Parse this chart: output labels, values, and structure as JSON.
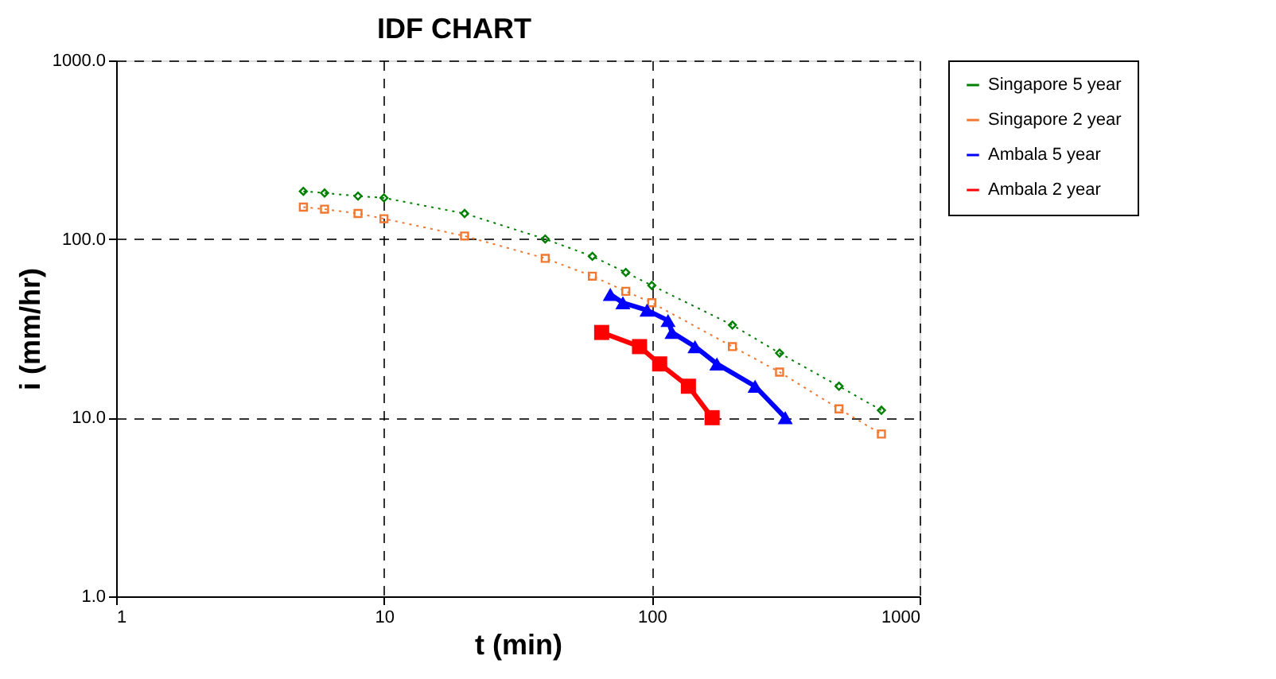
{
  "chart_data": {
    "type": "line",
    "title": "IDF CHART",
    "xlabel": "t (min)",
    "ylabel": "i (mm/hr)",
    "log": "xy",
    "grid": true,
    "legend": "right",
    "xlim": [
      1,
      1000
    ],
    "xticks": [
      1,
      10,
      100,
      1000
    ],
    "ylim": [
      1,
      1000
    ],
    "yticks": [
      {
        "value": 1,
        "label": "1.0"
      },
      {
        "value": 10,
        "label": "10.0"
      },
      {
        "value": 100,
        "label": "100.0"
      },
      {
        "value": 1000,
        "label": "1000.0"
      }
    ],
    "series": [
      {
        "name": "Singapore 5 year",
        "color": "#008000",
        "marker": "diamond",
        "line_style": "dotted",
        "x": [
          5,
          6,
          8,
          10,
          20,
          40,
          60,
          80,
          100,
          200,
          300,
          500,
          720
        ],
        "values": [
          185,
          181,
          174,
          170,
          139,
          100,
          80,
          65,
          55,
          33,
          23,
          15,
          11
        ]
      },
      {
        "name": "Singapore 2 year",
        "color": "#f07830",
        "marker": "square",
        "line_style": "dotted",
        "x": [
          5,
          6,
          8,
          10,
          20,
          40,
          60,
          80,
          100,
          200,
          300,
          500,
          720
        ],
        "values": [
          151,
          147,
          139,
          130,
          104,
          78,
          62,
          51,
          44,
          25,
          18,
          11.2,
          8.1
        ]
      },
      {
        "name": "Ambala 5 year",
        "color": "#0000ff",
        "marker": "triangle",
        "line_style": "solid",
        "x": [
          70,
          78,
          96,
          115,
          119,
          145,
          175,
          243,
          315
        ],
        "values": [
          49,
          44,
          40,
          35,
          30,
          25,
          20,
          15,
          10
        ]
      },
      {
        "name": "Ambala 2 year",
        "color": "#ff0000",
        "marker": "square",
        "line_style": "solid",
        "x": [
          65,
          90,
          107,
          137,
          168
        ],
        "values": [
          30,
          25,
          20,
          15,
          10
        ]
      }
    ]
  }
}
